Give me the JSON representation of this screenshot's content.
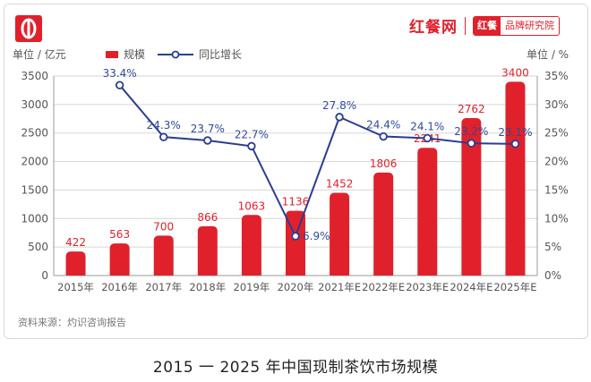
{
  "header": {
    "brand_main": "红餐网",
    "brand_badge_left": "红餐",
    "brand_badge_right": "品牌研究院"
  },
  "footer": {
    "source": "资料来源：灼识咨询报告",
    "caption": "2015 一 2025 年中国现制茶饮市场规模"
  },
  "colors": {
    "bar": "#e0212b",
    "line": "#2b3d8f",
    "bar_label": "#e0212b",
    "line_label": "#2f4a9b"
  },
  "chart_data": {
    "type": "bar",
    "categories": [
      "2015年",
      "2016年",
      "2017年",
      "2018年",
      "2019年",
      "2020年",
      "2021年E",
      "2022年E",
      "2023年E",
      "2024年E",
      "2025年E"
    ],
    "series": [
      {
        "name": "规模",
        "type": "bar",
        "axis": "left",
        "values": [
          422,
          563,
          700,
          866,
          1063,
          1136,
          1452,
          1806,
          2241,
          2762,
          3400
        ],
        "labels": [
          "422",
          "563",
          "700",
          "866",
          "1063",
          "1136",
          "1452",
          "1806",
          "2241",
          "2762",
          "3400"
        ]
      },
      {
        "name": "同比增长",
        "type": "line",
        "axis": "right",
        "values": [
          null,
          33.4,
          24.3,
          23.7,
          22.7,
          6.9,
          27.8,
          24.4,
          24.1,
          23.2,
          23.1
        ],
        "labels": [
          "",
          "33.4%",
          "24.3%",
          "23.7%",
          "22.7%",
          "6.9%",
          "27.8%",
          "24.4%",
          "24.1%",
          "23.2%",
          "23.1%"
        ]
      }
    ],
    "ylabel": "单位 / 亿元",
    "y2label": "单位 / %",
    "ylim": [
      0,
      3500
    ],
    "y2lim": [
      0,
      35
    ],
    "yticks": [
      "0",
      "500",
      "1000",
      "1500",
      "2000",
      "2500",
      "3000",
      "3500"
    ],
    "y2ticks": [
      "0%",
      "5%",
      "10%",
      "15%",
      "20%",
      "25%",
      "30%",
      "35%"
    ],
    "grid": true,
    "legend_position": "top-left"
  }
}
